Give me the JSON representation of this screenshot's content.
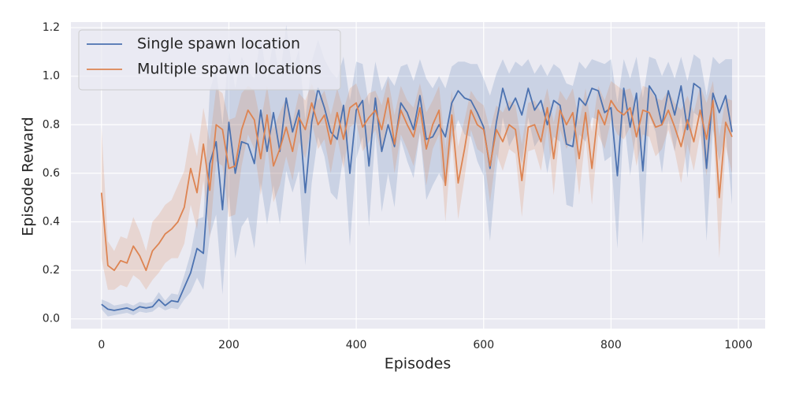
{
  "chart_data": {
    "type": "line",
    "xlabel": "Episodes",
    "ylabel": "Episode Reward",
    "x": [
      0,
      10,
      20,
      30,
      40,
      50,
      60,
      70,
      80,
      90,
      100,
      110,
      120,
      130,
      140,
      150,
      160,
      170,
      180,
      190,
      200,
      210,
      220,
      230,
      240,
      250,
      260,
      270,
      280,
      290,
      300,
      310,
      320,
      330,
      340,
      350,
      360,
      370,
      380,
      390,
      400,
      410,
      420,
      430,
      440,
      450,
      460,
      470,
      480,
      490,
      500,
      510,
      520,
      530,
      540,
      550,
      560,
      570,
      580,
      590,
      600,
      610,
      620,
      630,
      640,
      650,
      660,
      670,
      680,
      690,
      700,
      710,
      720,
      730,
      740,
      750,
      760,
      770,
      780,
      790,
      800,
      810,
      820,
      830,
      840,
      850,
      860,
      870,
      880,
      890,
      900,
      910,
      920,
      930,
      940,
      950,
      960,
      970,
      980,
      990
    ],
    "series": [
      {
        "name": "Single spawn location",
        "color": "#4c72b0",
        "values": [
          0.06,
          0.04,
          0.035,
          0.04,
          0.045,
          0.035,
          0.05,
          0.045,
          0.05,
          0.08,
          0.055,
          0.075,
          0.07,
          0.13,
          0.19,
          0.29,
          0.27,
          0.64,
          0.73,
          0.45,
          0.81,
          0.6,
          0.73,
          0.72,
          0.64,
          0.86,
          0.69,
          0.85,
          0.69,
          0.91,
          0.77,
          0.86,
          0.52,
          0.81,
          0.95,
          0.87,
          0.77,
          0.74,
          0.88,
          0.6,
          0.86,
          0.9,
          0.63,
          0.91,
          0.69,
          0.8,
          0.71,
          0.89,
          0.85,
          0.78,
          0.92,
          0.74,
          0.75,
          0.8,
          0.75,
          0.89,
          0.94,
          0.91,
          0.9,
          0.85,
          0.79,
          0.62,
          0.81,
          0.95,
          0.86,
          0.91,
          0.84,
          0.95,
          0.86,
          0.9,
          0.8,
          0.9,
          0.88,
          0.72,
          0.71,
          0.91,
          0.88,
          0.95,
          0.94,
          0.85,
          0.87,
          0.59,
          0.95,
          0.79,
          0.93,
          0.61,
          0.96,
          0.92,
          0.8,
          0.94,
          0.84,
          0.96,
          0.78,
          0.97,
          0.95,
          0.62,
          0.93,
          0.85,
          0.92,
          0.77
        ],
        "ci": [
          0.02,
          0.03,
          0.02,
          0.02,
          0.02,
          0.02,
          0.02,
          0.02,
          0.02,
          0.03,
          0.02,
          0.03,
          0.03,
          0.05,
          0.08,
          0.12,
          0.15,
          0.3,
          0.3,
          0.35,
          0.3,
          0.35,
          0.35,
          0.3,
          0.35,
          0.3,
          0.3,
          0.3,
          0.3,
          0.3,
          0.25,
          0.25,
          0.3,
          0.25,
          0.2,
          0.2,
          0.25,
          0.25,
          0.2,
          0.3,
          0.2,
          0.15,
          0.25,
          0.15,
          0.25,
          0.2,
          0.25,
          0.15,
          0.2,
          0.2,
          0.15,
          0.25,
          0.2,
          0.2,
          0.2,
          0.15,
          0.12,
          0.15,
          0.15,
          0.2,
          0.2,
          0.3,
          0.2,
          0.12,
          0.15,
          0.15,
          0.2,
          0.12,
          0.15,
          0.15,
          0.2,
          0.15,
          0.15,
          0.25,
          0.25,
          0.15,
          0.15,
          0.12,
          0.12,
          0.2,
          0.2,
          0.3,
          0.12,
          0.2,
          0.15,
          0.3,
          0.12,
          0.15,
          0.2,
          0.12,
          0.15,
          0.12,
          0.2,
          0.12,
          0.12,
          0.3,
          0.15,
          0.2,
          0.15,
          0.3
        ]
      },
      {
        "name": "Multiple spawn locations",
        "color": "#dd8452",
        "values": [
          0.52,
          0.22,
          0.2,
          0.24,
          0.23,
          0.3,
          0.26,
          0.2,
          0.28,
          0.31,
          0.35,
          0.37,
          0.4,
          0.46,
          0.62,
          0.52,
          0.72,
          0.53,
          0.8,
          0.78,
          0.62,
          0.63,
          0.78,
          0.86,
          0.82,
          0.66,
          0.84,
          0.63,
          0.7,
          0.79,
          0.69,
          0.83,
          0.78,
          0.89,
          0.8,
          0.84,
          0.72,
          0.85,
          0.74,
          0.87,
          0.89,
          0.79,
          0.83,
          0.86,
          0.78,
          0.91,
          0.72,
          0.86,
          0.8,
          0.75,
          0.87,
          0.7,
          0.8,
          0.86,
          0.55,
          0.84,
          0.56,
          0.7,
          0.86,
          0.8,
          0.78,
          0.63,
          0.78,
          0.73,
          0.8,
          0.78,
          0.57,
          0.79,
          0.8,
          0.73,
          0.87,
          0.66,
          0.86,
          0.8,
          0.85,
          0.66,
          0.85,
          0.62,
          0.86,
          0.8,
          0.9,
          0.86,
          0.84,
          0.87,
          0.75,
          0.86,
          0.85,
          0.79,
          0.8,
          0.86,
          0.79,
          0.71,
          0.82,
          0.73,
          0.86,
          0.74,
          0.9,
          0.5,
          0.81,
          0.75
        ],
        "ci": [
          0.27,
          0.1,
          0.08,
          0.1,
          0.1,
          0.12,
          0.1,
          0.08,
          0.12,
          0.12,
          0.12,
          0.12,
          0.15,
          0.15,
          0.15,
          0.15,
          0.15,
          0.2,
          0.15,
          0.15,
          0.2,
          0.2,
          0.15,
          0.1,
          0.12,
          0.15,
          0.12,
          0.15,
          0.15,
          0.12,
          0.12,
          0.1,
          0.12,
          0.08,
          0.1,
          0.1,
          0.12,
          0.1,
          0.12,
          0.08,
          0.08,
          0.1,
          0.1,
          0.08,
          0.1,
          0.08,
          0.12,
          0.1,
          0.1,
          0.12,
          0.1,
          0.15,
          0.1,
          0.1,
          0.15,
          0.1,
          0.15,
          0.12,
          0.08,
          0.1,
          0.1,
          0.15,
          0.1,
          0.12,
          0.1,
          0.1,
          0.15,
          0.1,
          0.1,
          0.12,
          0.08,
          0.15,
          0.08,
          0.1,
          0.1,
          0.15,
          0.1,
          0.15,
          0.1,
          0.1,
          0.08,
          0.1,
          0.1,
          0.08,
          0.12,
          0.1,
          0.1,
          0.12,
          0.1,
          0.08,
          0.1,
          0.15,
          0.1,
          0.12,
          0.1,
          0.15,
          0.08,
          0.25,
          0.1,
          0.15
        ]
      }
    ],
    "xlim": [
      -48,
      1042
    ],
    "ylim": [
      -0.04,
      1.223
    ],
    "xticks": [
      0,
      200,
      400,
      600,
      800,
      1000
    ],
    "yticks": [
      {
        "value": 0,
        "label": "0.0"
      },
      0.2,
      0.4,
      0.6,
      0.8,
      {
        "value": 1,
        "label": "1.0"
      },
      1.2
    ],
    "grid": true,
    "legend": "upper left"
  }
}
